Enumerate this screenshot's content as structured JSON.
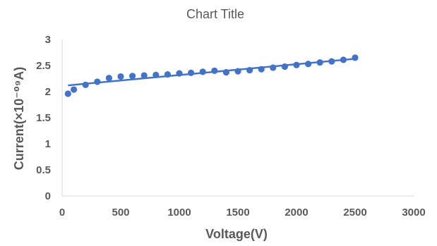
{
  "chart_data": {
    "type": "scatter",
    "title": "Chart Title",
    "xlabel": "Voltage(V)",
    "ylabel": "Current(×10⁻⁰⁹A)",
    "xlim": [
      0,
      3000
    ],
    "ylim": [
      0,
      3
    ],
    "x_ticks": [
      0,
      500,
      1000,
      1500,
      2000,
      2500,
      3000
    ],
    "y_ticks": [
      0,
      0.5,
      1,
      1.5,
      2,
      2.5,
      3
    ],
    "x_tick_labels": [
      "0",
      "500",
      "1000",
      "1500",
      "2000",
      "2500",
      "3000"
    ],
    "y_tick_labels": [
      "0",
      "0.5",
      "1",
      "1.5",
      "2",
      "2.5",
      "3"
    ],
    "grid": false,
    "legend": "none",
    "series": [
      {
        "marker_color": "#4472C4",
        "points": [
          {
            "x": 50,
            "y": 1.96
          },
          {
            "x": 100,
            "y": 2.04
          },
          {
            "x": 200,
            "y": 2.13
          },
          {
            "x": 300,
            "y": 2.19
          },
          {
            "x": 400,
            "y": 2.26
          },
          {
            "x": 500,
            "y": 2.29
          },
          {
            "x": 600,
            "y": 2.3
          },
          {
            "x": 700,
            "y": 2.31
          },
          {
            "x": 800,
            "y": 2.32
          },
          {
            "x": 900,
            "y": 2.33
          },
          {
            "x": 1000,
            "y": 2.35
          },
          {
            "x": 1100,
            "y": 2.36
          },
          {
            "x": 1200,
            "y": 2.38
          },
          {
            "x": 1300,
            "y": 2.4
          },
          {
            "x": 1400,
            "y": 2.37
          },
          {
            "x": 1500,
            "y": 2.39
          },
          {
            "x": 1600,
            "y": 2.41
          },
          {
            "x": 1700,
            "y": 2.43
          },
          {
            "x": 1800,
            "y": 2.46
          },
          {
            "x": 1900,
            "y": 2.48
          },
          {
            "x": 2000,
            "y": 2.51
          },
          {
            "x": 2100,
            "y": 2.53
          },
          {
            "x": 2200,
            "y": 2.56
          },
          {
            "x": 2300,
            "y": 2.58
          },
          {
            "x": 2400,
            "y": 2.61
          },
          {
            "x": 2500,
            "y": 2.65
          }
        ]
      }
    ],
    "trendline": {
      "type": "linear",
      "color": "#4472C4",
      "x_start": 50,
      "y_start": 2.12,
      "x_end": 2500,
      "y_end": 2.63
    },
    "axis_color": "#D9D9D9"
  }
}
